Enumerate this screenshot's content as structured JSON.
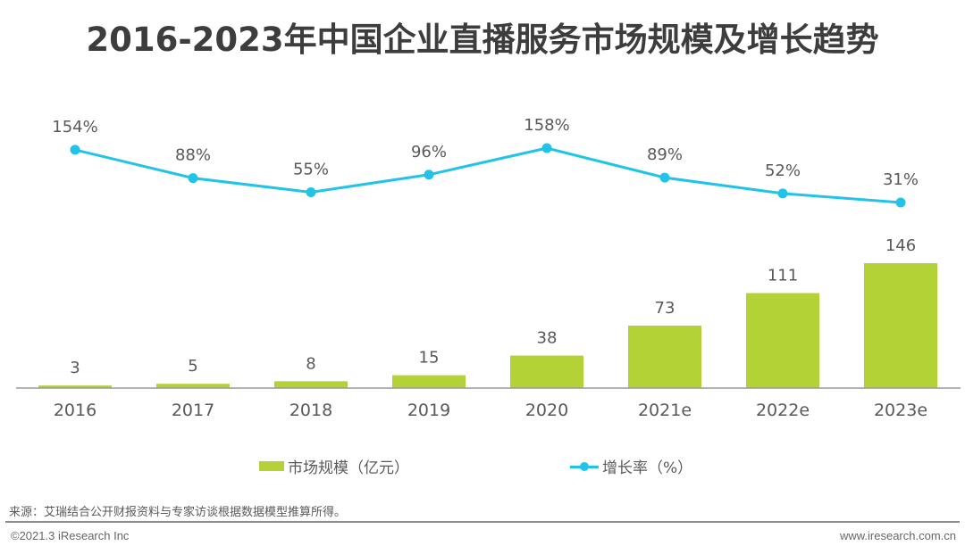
{
  "title": "2016-2023年中国企业直播服务市场规模及增长趋势",
  "chart_data": {
    "type": "bar+line",
    "title": "2016-2023年中国企业直播服务市场规模及增长趋势",
    "categories": [
      "2016",
      "2017",
      "2018",
      "2019",
      "2020",
      "2021e",
      "2022e",
      "2023e"
    ],
    "series": [
      {
        "name": "市场规模（亿元）",
        "type": "bar",
        "color": "#b2d235",
        "values": [
          3,
          5,
          8,
          15,
          38,
          73,
          111,
          146
        ],
        "labels": [
          "3",
          "5",
          "8",
          "15",
          "38",
          "73",
          "111",
          "146"
        ]
      },
      {
        "name": "增长率（%）",
        "type": "line",
        "color": "#22c3e8",
        "values": [
          154,
          88,
          55,
          96,
          158,
          89,
          52,
          31
        ],
        "labels": [
          "154%",
          "88%",
          "55%",
          "96%",
          "158%",
          "89%",
          "52%",
          "31%"
        ]
      }
    ],
    "xlabel": "",
    "ylabel": "",
    "bar_ylim": [
      0,
      146
    ],
    "line_ylim": [
      31,
      158
    ],
    "grid": false,
    "legend_position": "bottom"
  },
  "legend": {
    "bar_label": "市场规模（亿元）",
    "line_label": "增长率（%）"
  },
  "footer": {
    "source": "来源：艾瑞结合公开财报资料与专家访谈根据数据模型推算所得。",
    "copyright": "©2021.3 iResearch Inc",
    "website": "www.iresearch.com.cn"
  }
}
